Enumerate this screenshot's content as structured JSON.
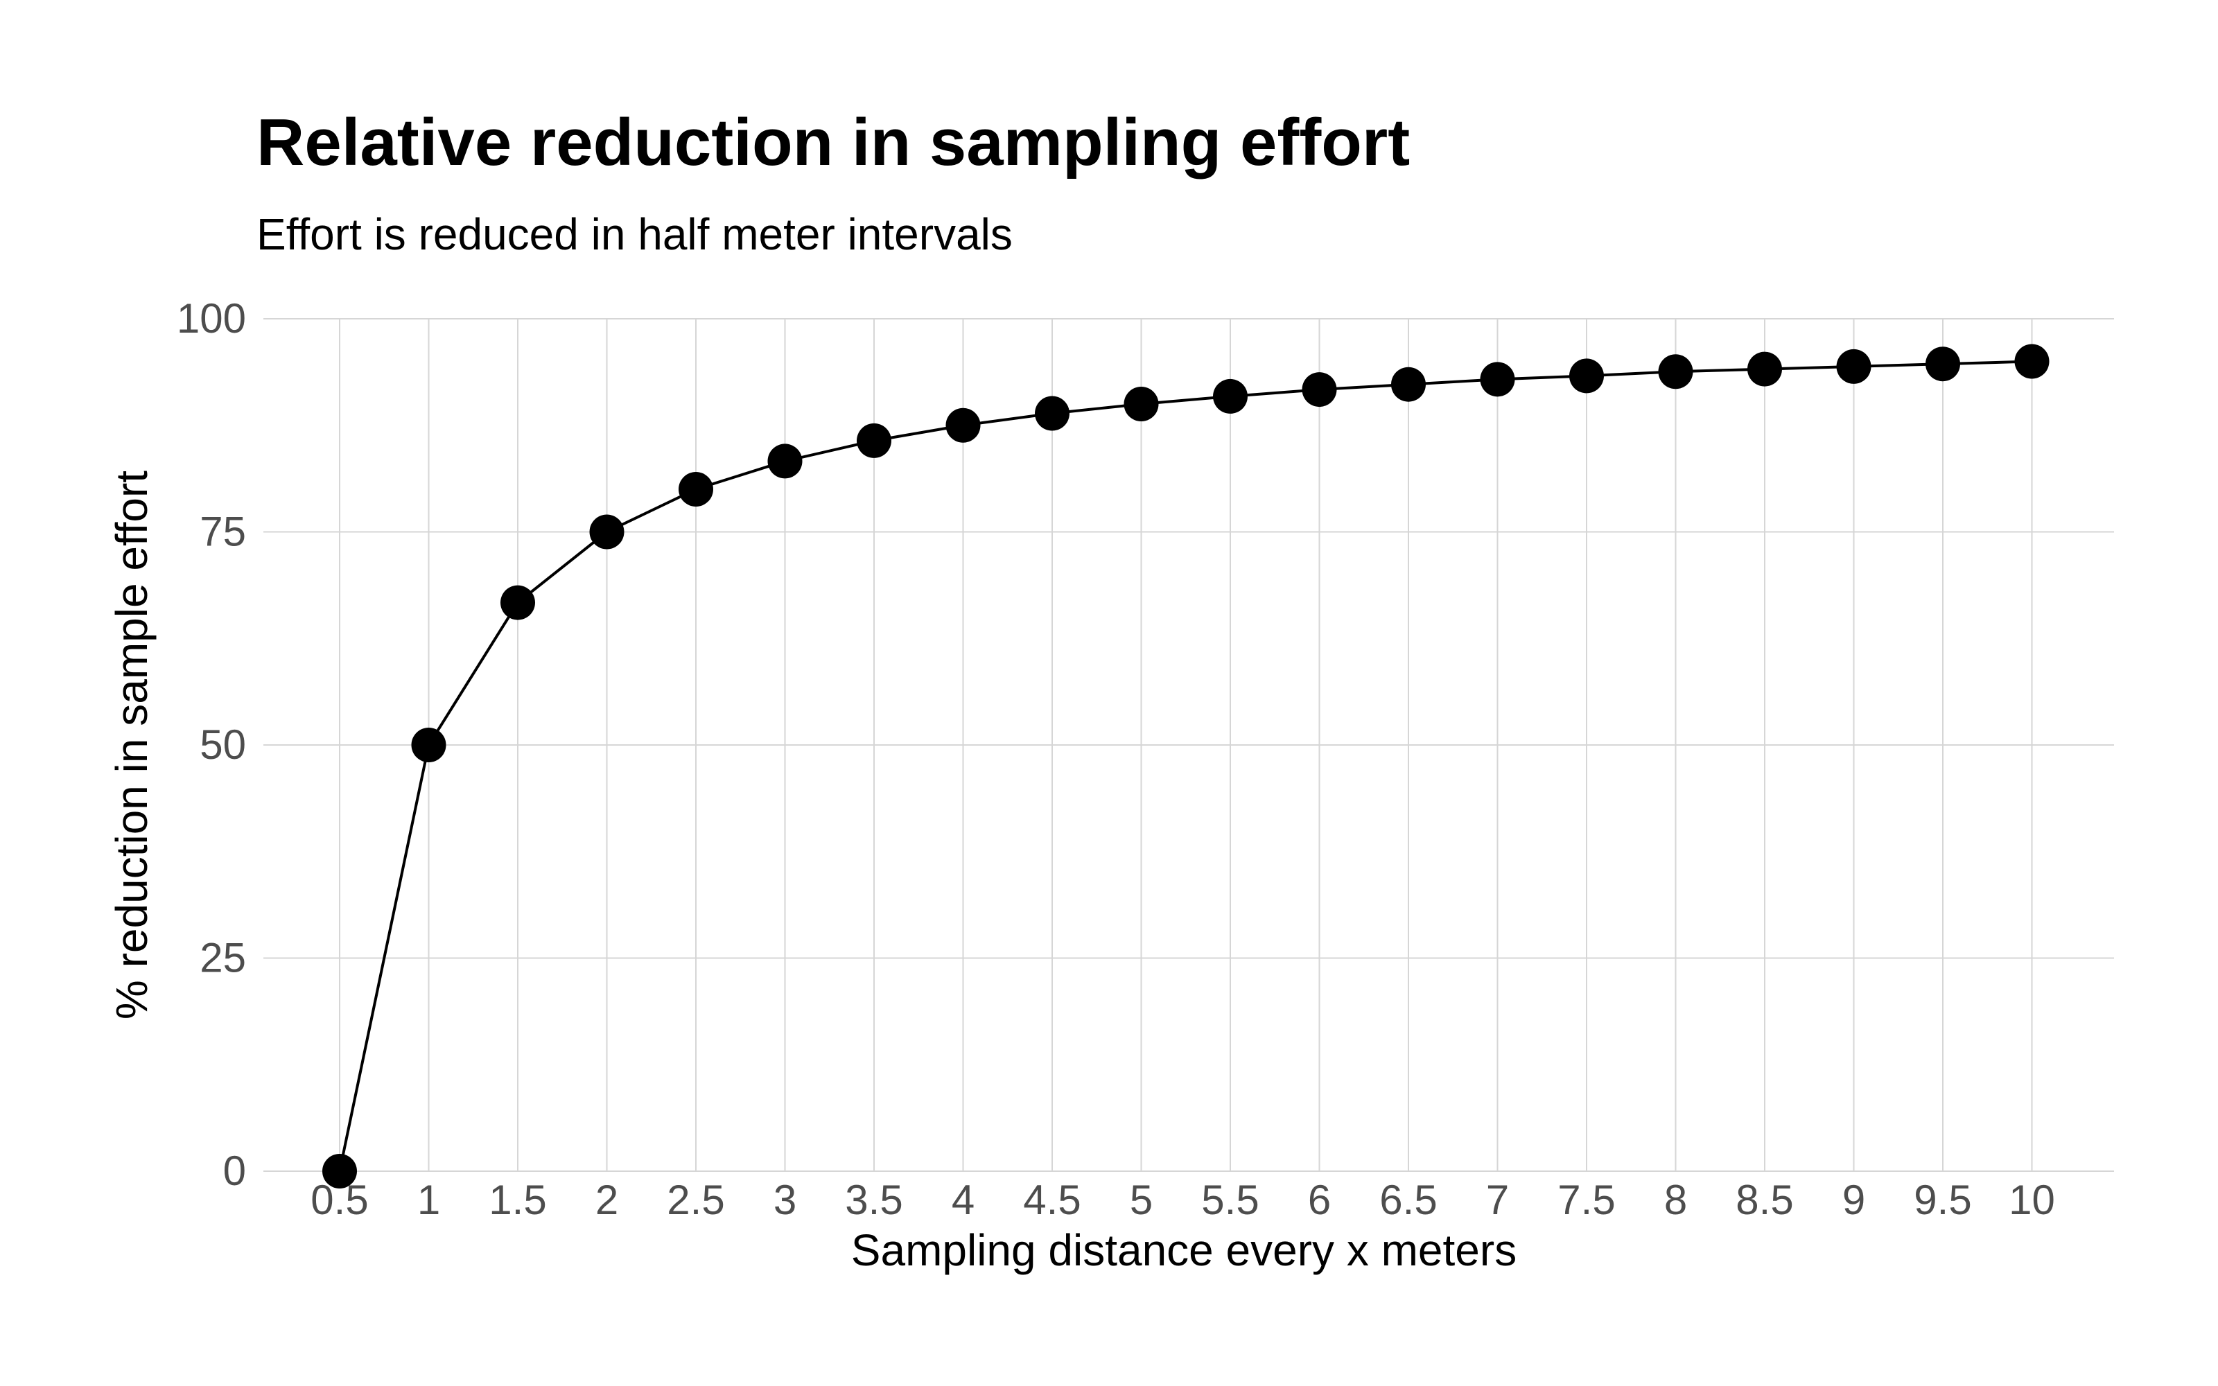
{
  "chart_data": {
    "type": "line",
    "title": "Relative reduction in sampling effort",
    "subtitle": "Effort is reduced in half meter intervals",
    "xlabel": "Sampling distance every x meters",
    "ylabel": "% reduction in sample effort",
    "x_ticks": [
      "0.5",
      "1",
      "1.5",
      "2",
      "2.5",
      "3",
      "3.5",
      "4",
      "4.5",
      "5",
      "5.5",
      "6",
      "6.5",
      "7",
      "7.5",
      "8",
      "8.5",
      "9",
      "9.5",
      "10"
    ],
    "y_ticks": [
      "0",
      "25",
      "50",
      "75",
      "100"
    ],
    "ylim": [
      0,
      100
    ],
    "grid": true,
    "series": [
      {
        "name": "reduction",
        "x": [
          0.5,
          1,
          1.5,
          2,
          2.5,
          3,
          3.5,
          4,
          4.5,
          5,
          5.5,
          6,
          6.5,
          7,
          7.5,
          8,
          8.5,
          9,
          9.5,
          10
        ],
        "values": [
          0,
          50,
          66.7,
          75,
          80,
          83.3,
          85.7,
          87.5,
          88.9,
          90,
          90.9,
          91.7,
          92.3,
          92.9,
          93.3,
          93.8,
          94.1,
          94.4,
          94.7,
          95
        ]
      }
    ]
  }
}
